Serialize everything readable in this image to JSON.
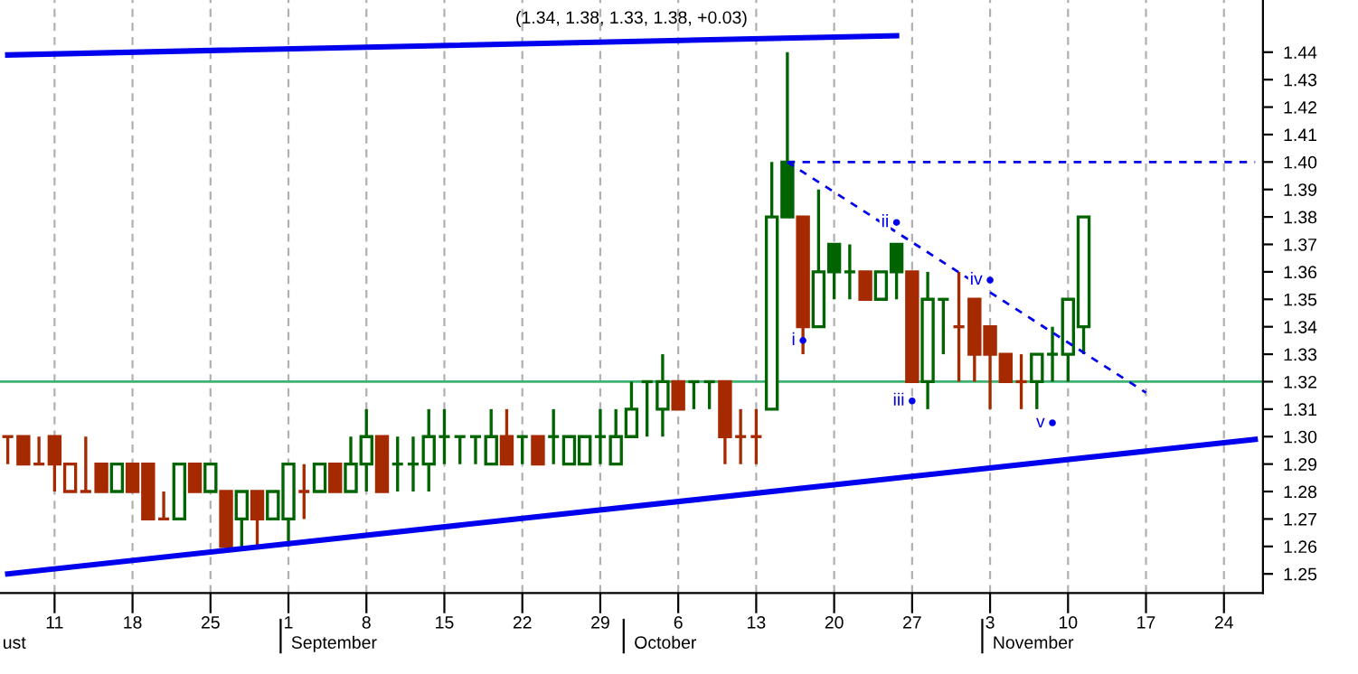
{
  "chart_data": {
    "type": "candlestick",
    "title": "(1.34, 1.38, 1.33, 1.38, +0.03)",
    "categories": [
      null,
      null,
      null,
      "11",
      null,
      null,
      null,
      null,
      "18",
      null,
      null,
      null,
      null,
      "25",
      null,
      null,
      null,
      null,
      "1",
      null,
      null,
      null,
      null,
      "8",
      null,
      null,
      null,
      null,
      "15",
      null,
      null,
      null,
      null,
      "22",
      null,
      null,
      null,
      null,
      "29",
      null,
      null,
      null,
      null,
      "6",
      null,
      null,
      null,
      null,
      "13",
      null,
      null,
      null,
      null,
      "20",
      null,
      null,
      null,
      null,
      "27",
      null,
      null,
      null,
      null,
      "3",
      null,
      null,
      null,
      null,
      "10",
      null,
      null,
      null,
      null,
      "17",
      null,
      null,
      null,
      null,
      "24",
      null,
      null
    ],
    "ohlc": [
      [
        1.3,
        1.3,
        1.29,
        1.3
      ],
      [
        1.3,
        1.3,
        1.29,
        1.29
      ],
      [
        1.29,
        1.3,
        1.29,
        1.29
      ],
      [
        1.3,
        1.3,
        1.28,
        1.29
      ],
      [
        1.28,
        1.29,
        1.28,
        1.29
      ],
      [
        1.28,
        1.3,
        1.28,
        1.28
      ],
      [
        1.29,
        1.29,
        1.28,
        1.28
      ],
      [
        1.28,
        1.29,
        1.28,
        1.29
      ],
      [
        1.29,
        1.29,
        1.28,
        1.28
      ],
      [
        1.29,
        1.29,
        1.27,
        1.27
      ],
      [
        1.27,
        1.28,
        1.27,
        1.27
      ],
      [
        1.27,
        1.29,
        1.27,
        1.29
      ],
      [
        1.29,
        1.29,
        1.28,
        1.28
      ],
      [
        1.28,
        1.29,
        1.28,
        1.29
      ],
      [
        1.28,
        1.28,
        1.26,
        1.26
      ],
      [
        1.27,
        1.28,
        1.26,
        1.28
      ],
      [
        1.28,
        1.28,
        1.26,
        1.27
      ],
      [
        1.27,
        1.28,
        1.27,
        1.28
      ],
      [
        1.27,
        1.29,
        1.26,
        1.29
      ],
      [
        1.28,
        1.29,
        1.27,
        1.28
      ],
      [
        1.28,
        1.29,
        1.28,
        1.29
      ],
      [
        1.29,
        1.29,
        1.28,
        1.28
      ],
      [
        1.28,
        1.3,
        1.28,
        1.29
      ],
      [
        1.29,
        1.31,
        1.28,
        1.3
      ],
      [
        1.3,
        1.3,
        1.28,
        1.28
      ],
      [
        1.29,
        1.3,
        1.28,
        1.29
      ],
      [
        1.29,
        1.3,
        1.28,
        1.29
      ],
      [
        1.29,
        1.31,
        1.28,
        1.3
      ],
      [
        1.3,
        1.31,
        1.29,
        1.3
      ],
      [
        1.3,
        1.3,
        1.29,
        1.3
      ],
      [
        1.3,
        1.3,
        1.29,
        1.3
      ],
      [
        1.29,
        1.31,
        1.29,
        1.3
      ],
      [
        1.3,
        1.31,
        1.29,
        1.29
      ],
      [
        1.3,
        1.3,
        1.29,
        1.3
      ],
      [
        1.3,
        1.3,
        1.29,
        1.29
      ],
      [
        1.3,
        1.31,
        1.29,
        1.3
      ],
      [
        1.29,
        1.3,
        1.29,
        1.3
      ],
      [
        1.29,
        1.3,
        1.29,
        1.3
      ],
      [
        1.3,
        1.31,
        1.29,
        1.3
      ],
      [
        1.29,
        1.31,
        1.29,
        1.3
      ],
      [
        1.3,
        1.32,
        1.3,
        1.31
      ],
      [
        1.32,
        1.32,
        1.3,
        1.32
      ],
      [
        1.31,
        1.33,
        1.3,
        1.32
      ],
      [
        1.32,
        1.32,
        1.31,
        1.31
      ],
      [
        1.32,
        1.32,
        1.31,
        1.32
      ],
      [
        1.32,
        1.32,
        1.31,
        1.32
      ],
      [
        1.32,
        1.32,
        1.29,
        1.3
      ],
      [
        1.3,
        1.31,
        1.29,
        1.3
      ],
      [
        1.3,
        1.31,
        1.29,
        1.3
      ],
      [
        1.31,
        1.4,
        1.31,
        1.38
      ],
      [
        1.4,
        1.44,
        1.38,
        1.38
      ],
      [
        1.38,
        1.38,
        1.33,
        1.34
      ],
      [
        1.34,
        1.39,
        1.34,
        1.36
      ],
      [
        1.37,
        1.37,
        1.35,
        1.36
      ],
      [
        1.36,
        1.37,
        1.35,
        1.36
      ],
      [
        1.36,
        1.36,
        1.35,
        1.35
      ],
      [
        1.35,
        1.36,
        1.35,
        1.36
      ],
      [
        1.37,
        1.37,
        1.35,
        1.36
      ],
      [
        1.36,
        1.36,
        1.32,
        1.32
      ],
      [
        1.32,
        1.36,
        1.31,
        1.35
      ],
      [
        1.35,
        1.35,
        1.33,
        1.35
      ],
      [
        1.34,
        1.36,
        1.32,
        1.34
      ],
      [
        1.35,
        1.35,
        1.32,
        1.33
      ],
      [
        1.34,
        1.34,
        1.31,
        1.33
      ],
      [
        1.33,
        1.33,
        1.32,
        1.32
      ],
      [
        1.32,
        1.33,
        1.31,
        1.32
      ],
      [
        1.32,
        1.33,
        1.31,
        1.33
      ],
      [
        1.33,
        1.34,
        1.32,
        1.33
      ],
      [
        1.33,
        1.35,
        1.32,
        1.35
      ],
      [
        1.34,
        1.38,
        1.33,
        1.38
      ],
      null,
      null,
      null,
      null,
      null,
      null,
      null,
      null,
      null,
      null,
      null
    ],
    "colors": [
      "#a52a00",
      "#a52a00",
      "#a52a00",
      "#a52a00",
      "#a52a00",
      "#a52a00",
      "#a52a00",
      "#006400",
      "#a52a00",
      "#a52a00",
      "#a52a00",
      "#006400",
      "#a52a00",
      "#006400",
      "#a52a00",
      "#006400",
      "#a52a00",
      "#006400",
      "#006400",
      "#a52a00",
      "#006400",
      "#a52a00",
      "#006400",
      "#006400",
      "#a52a00",
      "#006400",
      "#006400",
      "#006400",
      "#006400",
      "#006400",
      "#006400",
      "#006400",
      "#a52a00",
      "#006400",
      "#a52a00",
      "#006400",
      "#006400",
      "#006400",
      "#006400",
      "#006400",
      "#006400",
      "#006400",
      "#006400",
      "#a52a00",
      "#006400",
      "#006400",
      "#a52a00",
      "#a52a00",
      "#a52a00",
      "#006400",
      "#006400",
      "#a52a00",
      "#006400",
      "#006400",
      "#006400",
      "#a52a00",
      "#006400",
      "#006400",
      "#a52a00",
      "#006400",
      "#006400",
      "#a52a00",
      "#a52a00",
      "#a52a00",
      "#a52a00",
      "#a52a00",
      "#006400",
      "#006400",
      "#006400",
      "#006400",
      null,
      null,
      null,
      null,
      null,
      null,
      null,
      null,
      null,
      null,
      null
    ],
    "series": [
      {
        "type": "line",
        "color": "#0000ee",
        "line_style": "solid",
        "values": [
          1.439,
          null,
          null,
          null,
          null,
          null,
          null,
          null,
          null,
          null,
          null,
          null,
          null,
          null,
          null,
          null,
          null,
          null,
          null,
          null,
          null,
          null,
          null,
          null,
          null,
          null,
          null,
          null,
          null,
          null,
          null,
          null,
          null,
          null,
          null,
          null,
          null,
          null,
          null,
          null,
          null,
          null,
          null,
          null,
          null,
          null,
          null,
          null,
          null,
          null,
          null,
          null,
          null,
          null,
          null,
          null,
          null,
          1.446,
          null,
          null,
          null,
          null,
          null,
          null,
          null,
          null,
          null,
          null,
          null,
          null,
          null,
          null,
          null,
          null,
          null,
          null,
          null,
          null,
          null,
          null,
          null
        ]
      },
      {
        "type": "line",
        "color": "#0000ee",
        "line_style": "solid",
        "values": [
          1.25,
          null,
          null,
          null,
          null,
          null,
          null,
          null,
          null,
          null,
          null,
          null,
          null,
          null,
          null,
          null,
          null,
          null,
          null,
          null,
          null,
          null,
          null,
          null,
          null,
          null,
          null,
          null,
          null,
          null,
          null,
          null,
          null,
          null,
          null,
          null,
          null,
          null,
          null,
          null,
          null,
          null,
          null,
          null,
          null,
          null,
          null,
          null,
          null,
          null,
          null,
          null,
          null,
          null,
          null,
          null,
          null,
          null,
          null,
          null,
          null,
          null,
          null,
          null,
          null,
          null,
          null,
          null,
          null,
          null,
          null,
          null,
          null,
          null,
          null,
          null,
          null,
          null,
          null,
          null,
          1.299
        ]
      },
      {
        "type": "line",
        "color": "#0000ee",
        "line_style": "dashed",
        "values": [
          null,
          null,
          null,
          null,
          null,
          null,
          null,
          null,
          null,
          null,
          null,
          null,
          null,
          null,
          null,
          null,
          null,
          null,
          null,
          null,
          null,
          null,
          null,
          null,
          null,
          null,
          null,
          null,
          null,
          null,
          null,
          null,
          null,
          null,
          null,
          null,
          null,
          null,
          null,
          null,
          null,
          null,
          null,
          null,
          null,
          null,
          null,
          null,
          null,
          null,
          1.4,
          null,
          null,
          null,
          null,
          null,
          null,
          null,
          null,
          null,
          null,
          null,
          null,
          null,
          null,
          null,
          null,
          null,
          null,
          null,
          null,
          null,
          null,
          1.316,
          null,
          null,
          null,
          null,
          null,
          null,
          null
        ]
      },
      {
        "type": "line",
        "color": "#0000ee",
        "line_style": "dashed",
        "values": [
          null,
          null,
          null,
          null,
          null,
          null,
          null,
          null,
          null,
          null,
          null,
          null,
          null,
          null,
          null,
          null,
          null,
          null,
          null,
          null,
          null,
          null,
          null,
          null,
          null,
          null,
          null,
          null,
          null,
          null,
          null,
          null,
          null,
          null,
          null,
          null,
          null,
          null,
          null,
          null,
          null,
          null,
          null,
          null,
          null,
          null,
          null,
          null,
          null,
          null,
          1.4,
          null,
          null,
          null,
          null,
          null,
          null,
          null,
          null,
          null,
          null,
          null,
          null,
          null,
          null,
          null,
          null,
          null,
          null,
          null,
          null,
          null,
          null,
          null,
          null,
          null,
          null,
          null,
          null,
          null,
          1.4
        ]
      },
      {
        "type": "scatter",
        "color": "#0000ee",
        "marker": "circle",
        "values": [
          null,
          null,
          null,
          null,
          null,
          null,
          null,
          null,
          null,
          null,
          null,
          null,
          null,
          null,
          null,
          null,
          null,
          null,
          null,
          null,
          null,
          null,
          null,
          null,
          null,
          null,
          null,
          null,
          null,
          null,
          null,
          null,
          null,
          null,
          null,
          null,
          null,
          null,
          null,
          null,
          null,
          null,
          null,
          null,
          null,
          null,
          null,
          null,
          null,
          null,
          null,
          1.335,
          null,
          null,
          null,
          null,
          null,
          1.378,
          1.313,
          null,
          null,
          null,
          null,
          1.357,
          null,
          null,
          null,
          1.305,
          null,
          null,
          null,
          null,
          null,
          null,
          null,
          null,
          null,
          null,
          null,
          null,
          null
        ],
        "value_labels": [
          null,
          null,
          null,
          null,
          null,
          null,
          null,
          null,
          null,
          null,
          null,
          null,
          null,
          null,
          null,
          null,
          null,
          null,
          null,
          null,
          null,
          null,
          null,
          null,
          null,
          null,
          null,
          null,
          null,
          null,
          null,
          null,
          null,
          null,
          null,
          null,
          null,
          null,
          null,
          null,
          null,
          null,
          null,
          null,
          null,
          null,
          null,
          null,
          null,
          null,
          null,
          "i",
          null,
          null,
          null,
          null,
          null,
          "ii",
          "iii",
          null,
          null,
          null,
          null,
          "iv",
          null,
          null,
          null,
          "v",
          null,
          null,
          null,
          null,
          null,
          null,
          null,
          null,
          null,
          null,
          null,
          null,
          null
        ]
      }
    ],
    "ref_lines": [
      {
        "axis": "y",
        "value": 1.32,
        "color": "#3cb371",
        "line_style": "solid"
      }
    ],
    "ylim": [
      1.243,
      1.459
    ],
    "yticks": [
      1.25,
      1.26,
      1.27,
      1.28,
      1.29,
      {
        "value": 1.3,
        "label": "1.30"
      },
      1.31,
      1.32,
      1.33,
      1.34,
      1.35,
      1.36,
      1.37,
      1.38,
      1.39,
      {
        "value": 1.4,
        "label": "1.40"
      },
      1.41,
      1.42,
      1.43,
      1.44
    ],
    "grid": "x",
    "annotations": [
      "ust",
      "September",
      "October",
      "November"
    ]
  }
}
